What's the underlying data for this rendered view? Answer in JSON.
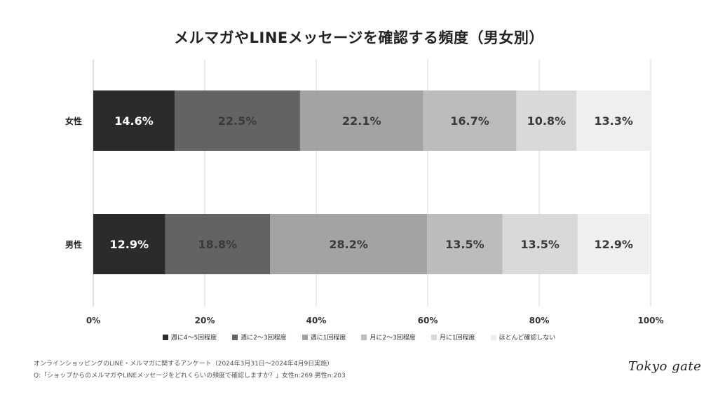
{
  "chart_data": {
    "type": "bar",
    "orientation": "horizontal-stacked-100",
    "title": "メルマガやLINEメッセージを確認する頻度（男女別）",
    "categories": [
      "女性",
      "男性"
    ],
    "series": [
      {
        "name": "週に4〜5回程度",
        "values": [
          14.6,
          12.9
        ],
        "color": "#2b2b2b"
      },
      {
        "name": "週に2〜3回程度",
        "values": [
          22.5,
          18.8
        ],
        "color": "#636363"
      },
      {
        "name": "週に1回程度",
        "values": [
          22.1,
          28.2
        ],
        "color": "#a3a3a3"
      },
      {
        "name": "月に2〜3回程度",
        "values": [
          16.7,
          13.5
        ],
        "color": "#bcbcbc"
      },
      {
        "name": "月に1回程度",
        "values": [
          10.8,
          13.5
        ],
        "color": "#d9d9d9"
      },
      {
        "name": "ほとんど確認しない",
        "values": [
          13.3,
          12.9
        ],
        "color": "#efefef"
      }
    ],
    "data_labels": [
      [
        "14.6%",
        "22.5%",
        "22.1%",
        "16.7%",
        "10.8%",
        "13.3%"
      ],
      [
        "12.9%",
        "18.8%",
        "28.2%",
        "13.5%",
        "13.5%",
        "12.9%"
      ]
    ],
    "xticks": [
      "0%",
      "20%",
      "40%",
      "60%",
      "80%",
      "100%"
    ],
    "xlim": [
      0,
      100
    ],
    "grid": true,
    "legend": "bottom"
  },
  "notes": {
    "survey": "オンラインショッピングのLINE・メルマガに関するアンケート（2024年3月31日〜2024年4月9日実施）",
    "question": "Q:「ショップからのメルマガやLINEメッセージをどれくらいの頻度で確認しますか？」女性n:269 男性n:203"
  },
  "logo": "Tokyo gate"
}
